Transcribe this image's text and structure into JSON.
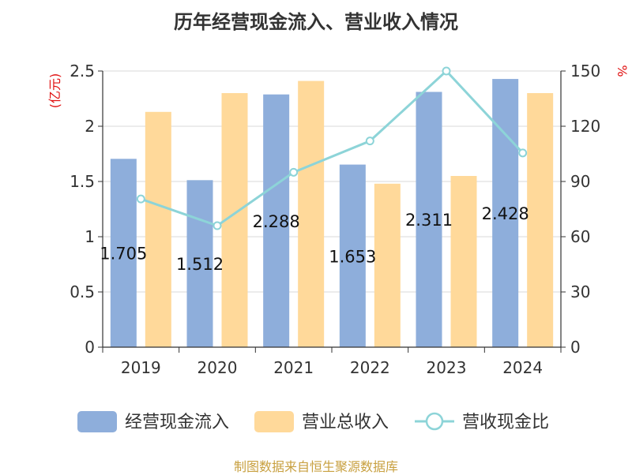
{
  "title": "历年经营现金流入、营业收入情况",
  "source": "制图数据来自恒生聚源数据库",
  "chart_data": {
    "type": "bar",
    "categories": [
      "2019",
      "2020",
      "2021",
      "2022",
      "2023",
      "2024"
    ],
    "series": [
      {
        "name": "经营现金流入",
        "type": "bar",
        "axis": "left",
        "color": "#8eaedb",
        "values": [
          1.705,
          1.512,
          2.288,
          1.653,
          2.311,
          2.428
        ],
        "data_labels": [
          "1.705",
          "1.512",
          "2.288",
          "1.653",
          "2.311",
          "2.428"
        ]
      },
      {
        "name": "营业总收入",
        "type": "bar",
        "axis": "left",
        "color": "#ffd99a",
        "values": [
          2.13,
          2.3,
          2.41,
          1.48,
          1.55,
          2.3
        ]
      },
      {
        "name": "营收现金比",
        "type": "line",
        "axis": "right",
        "color": "#8dd4d8",
        "values": [
          80.5,
          66.0,
          95.0,
          112.0,
          150.0,
          105.5
        ]
      }
    ],
    "y_left": {
      "unit": "(亿元)",
      "ylim": [
        0,
        2.5
      ],
      "ticks": [
        "0",
        "0.5",
        "1",
        "1.5",
        "2",
        "2.5"
      ]
    },
    "y_right": {
      "unit": "%",
      "ylim": [
        0,
        150
      ],
      "ticks": [
        "0",
        "30",
        "60",
        "90",
        "120",
        "150"
      ]
    },
    "grid": true,
    "legend_position": "bottom"
  }
}
